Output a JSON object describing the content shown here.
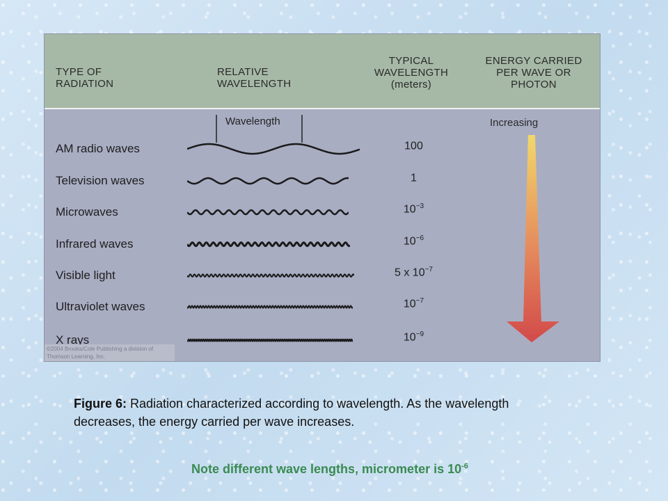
{
  "header": {
    "type_of_radiation": "TYPE OF RADIATION",
    "relative_wavelength": "RELATIVE WAVELENGTH",
    "typical_wavelength": "TYPICAL WAVELENGTH",
    "typical_wavelength_unit": "(meters)",
    "energy_carried": "ENERGY CARRIED PER WAVE OR PHOTON"
  },
  "wavelength_marker_label": "Wavelength",
  "energy_label": "Increasing",
  "rows": [
    {
      "label": "AM radio waves",
      "value": "100",
      "exp": ""
    },
    {
      "label": "Television waves",
      "value": "1",
      "exp": ""
    },
    {
      "label": "Microwaves",
      "value": "10",
      "exp": "−3"
    },
    {
      "label": "Infrared waves",
      "value": "10",
      "exp": "−6"
    },
    {
      "label": "Visible light",
      "value": "5 x 10",
      "exp": "−7"
    },
    {
      "label": "Ultraviolet waves",
      "value": "10",
      "exp": "−7"
    },
    {
      "label": "X rays",
      "value": "10",
      "exp": "−9"
    }
  ],
  "copyright": "©2004 Brooks/Cole Publishing a division of Thomson Learning, Inc.",
  "caption": {
    "lead": "Figure 6:",
    "text": " Radiation characterized according to wavelength. As the wavelength decreases, the energy carried per wave increases."
  },
  "note": {
    "text": "Note different wave lengths, micrometer is 10",
    "exp": "-6"
  },
  "colors": {
    "arrow_top": "#f2d86a",
    "arrow_bottom": "#d24a4a",
    "note": "#3a8a52"
  }
}
